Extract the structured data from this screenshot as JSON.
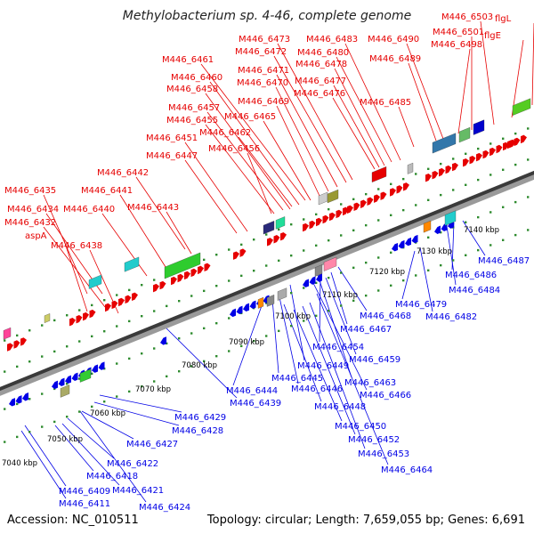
{
  "title": "Methylobacterium sp. 4-46, complete genome",
  "accession": "Accession: NC_010511",
  "summary": "Topology: circular; Length: 7,659,055 bp; Genes: 6,691",
  "colors": {
    "top_labels": "#e60000",
    "bottom_labels": "#0000e6",
    "scale_label": "#000000"
  },
  "scale_labels": [
    "7040 kbp",
    "7050 kbp",
    "7060 kbp",
    "7070 kbp",
    "7080 kbp",
    "7090 kbp",
    "7100 kbp",
    "7110 kbp",
    "7120 kbp",
    "7130 kbp",
    "7140 kbp"
  ],
  "top_gene_labels": [
    "M446_6435",
    "M446_6434",
    "M446_6432",
    "aspA",
    "M446_6438",
    "M446_6441",
    "M446_6440",
    "M446_6442",
    "M446_6443",
    "M446_6447",
    "M446_6451",
    "M446_6456",
    "M446_6455",
    "M446_6457",
    "M446_6462",
    "M446_6458",
    "M446_6460",
    "M446_6461",
    "M446_6465",
    "M446_6469",
    "M446_6470",
    "M446_6471",
    "M446_6472",
    "M446_6473",
    "M446_6476",
    "M446_6477",
    "M446_6478",
    "M446_6480",
    "M446_6483",
    "M446_6485",
    "M446_6489",
    "M446_6490",
    "M446_6498",
    "M446_6501",
    "M446_6503",
    "flgE",
    "flgL"
  ],
  "bottom_gene_labels": [
    "M446_6487",
    "M446_6486",
    "M446_6484",
    "M446_6482",
    "M446_6479",
    "M446_6468",
    "M446_6467",
    "M446_6454",
    "M446_6459",
    "M446_6449",
    "M446_6463",
    "M446_6466",
    "M446_6445",
    "M446_6446",
    "M446_6444",
    "M446_6448",
    "M446_6439",
    "M446_6450",
    "M446_6452",
    "M446_6453",
    "M446_6464",
    "M446_6429",
    "M446_6428",
    "M446_6427",
    "M446_6422",
    "M446_6418",
    "M446_6421",
    "M446_6409",
    "M446_6411",
    "M446_6424"
  ]
}
